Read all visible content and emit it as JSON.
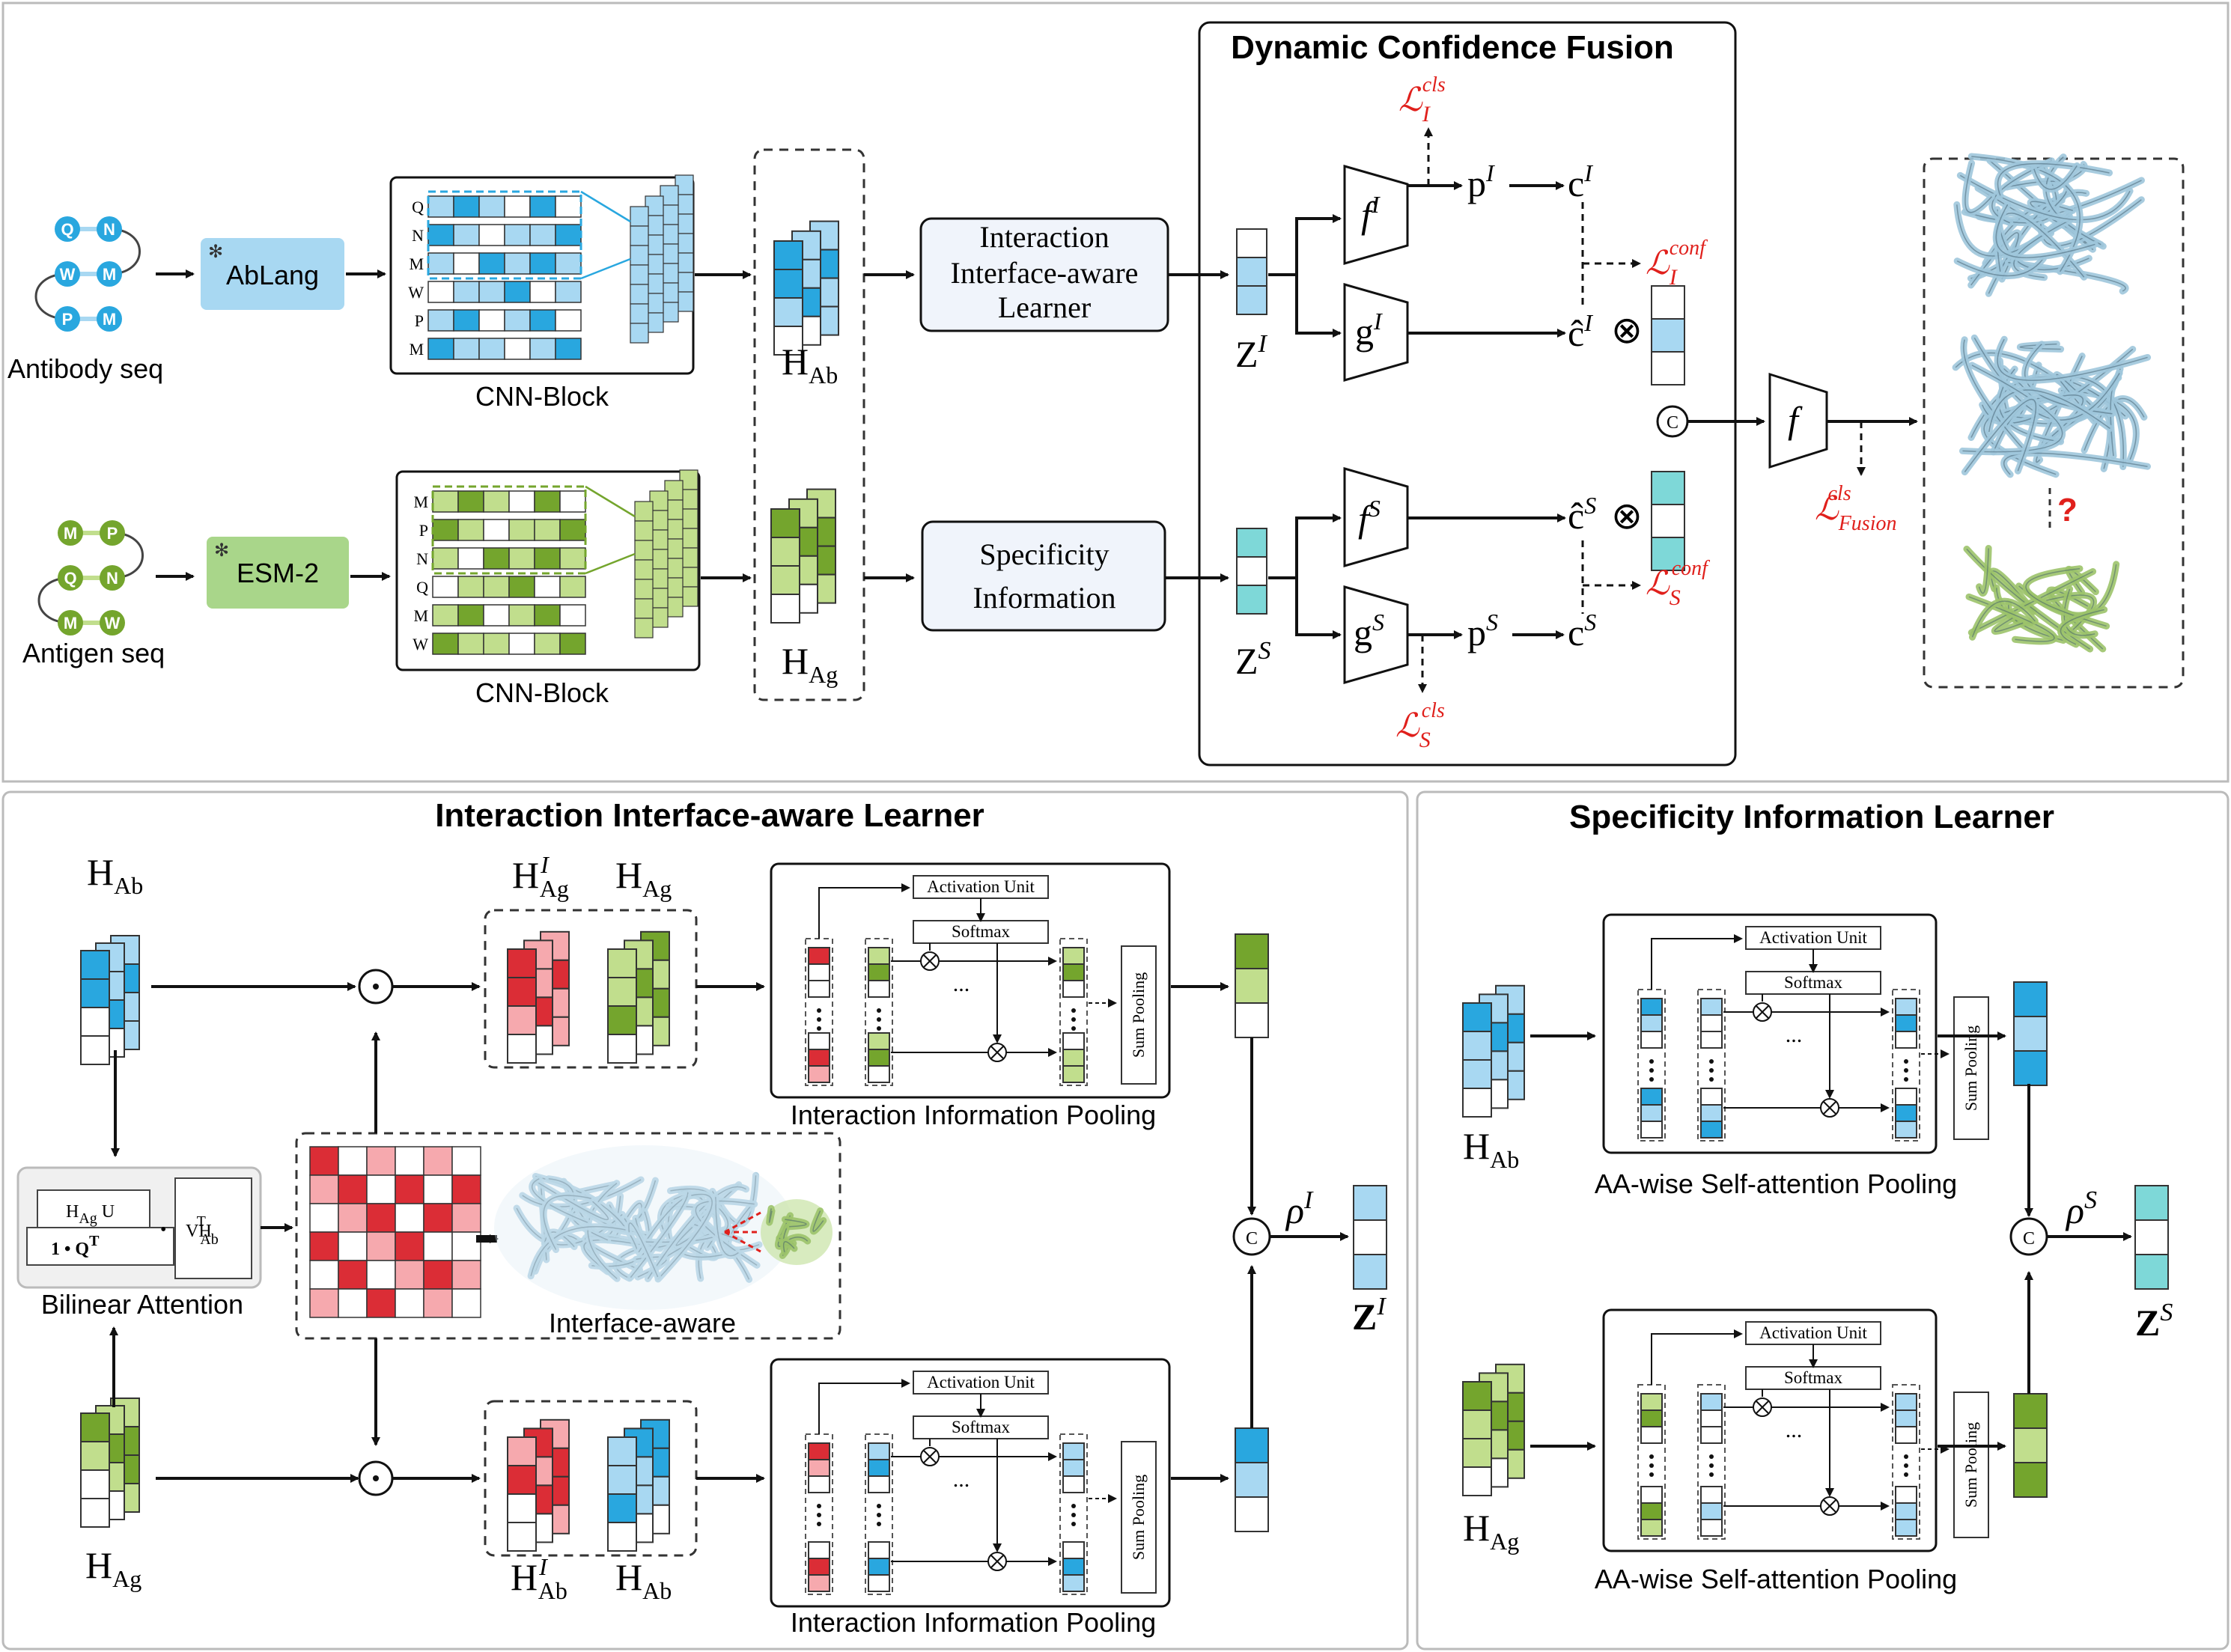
{
  "titles": {
    "dcf": "Dynamic Confidence Fusion",
    "iil": "Interaction Interface-aware Learner",
    "sil": "Specificity Information Learner"
  },
  "inputs": {
    "antibody_seq": "Antibody seq",
    "antigen_seq": "Antigen seq",
    "antibody_residues": [
      "Q",
      "N",
      "W",
      "M",
      "P",
      "M"
    ],
    "antigen_residues": [
      "M",
      "P",
      "Q",
      "N",
      "M",
      "W"
    ],
    "ablang": "AbLang",
    "esm2": "ESM-2",
    "cnn_block": "CNN-Block"
  },
  "modules": {
    "iil_box": [
      "Interaction",
      "Interface-aware",
      "Learner"
    ],
    "spec_box": [
      "Specificity",
      "Information"
    ],
    "activation_unit": "Activation Unit",
    "softmax": "Softmax",
    "sum_pooling": "Sum Pooling",
    "interaction_pooling": "Interaction Information Pooling",
    "aa_pooling": "AA-wise Self-attention Pooling",
    "bilinear_attention": "Bilinear Attention",
    "interface_aware": "Interface-aware",
    "ellipsis": "..."
  },
  "symbols": {
    "H": "H",
    "Ab": "Ab",
    "Ag": "Ag",
    "Z": "Z",
    "I": "I",
    "S": "S",
    "f": "f",
    "g": "g",
    "p": "p",
    "c": "c",
    "chat": "ĉ",
    "rho": "ρ",
    "L": "ℒ",
    "cls": "cls",
    "conf": "conf",
    "Fusion": "Fusion",
    "concat": "C",
    "otimes": "⊗",
    "odot": "⊙",
    "question": "?",
    "HAgU": "H",
    "U": "U",
    "oneQ": "1 • Q",
    "T": "T",
    "VH": "VH",
    "bullet": "•"
  },
  "colors": {
    "blue_dark": "#29a7df",
    "blue_light": "#a8d8f2",
    "green_dark": "#74a52d",
    "green_light": "#c1de8d",
    "red_dark": "#db2d36",
    "red_light": "#f6a9ae",
    "teal": "#7ed8d8",
    "loss_red": "#e0201c",
    "box_fill": "#f0f4fb"
  }
}
